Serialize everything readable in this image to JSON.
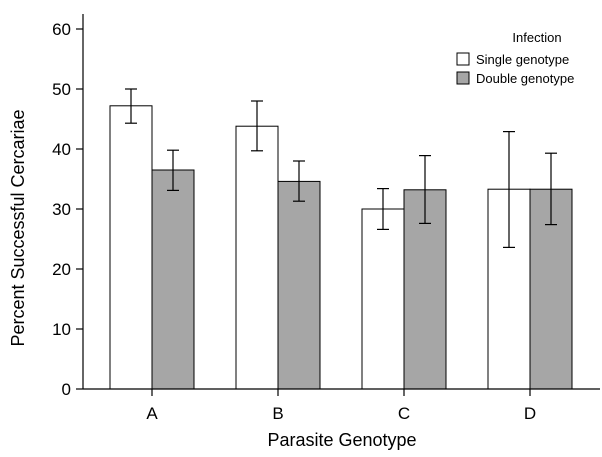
{
  "chart_data": {
    "type": "bar",
    "title": "",
    "xlabel": "Parasite Genotype",
    "ylabel": "Percent Successful Cercariae",
    "categories": [
      "A",
      "B",
      "C",
      "D"
    ],
    "ylim": [
      0,
      60
    ],
    "yticks": [
      0,
      10,
      20,
      30,
      40,
      50,
      60
    ],
    "legend": {
      "title": "Infection",
      "position": "top-right"
    },
    "series": [
      {
        "name": "Single genotype",
        "color": "#ffffff",
        "values": [
          47.2,
          43.8,
          30.0,
          33.3
        ],
        "err_low": [
          44.3,
          39.7,
          26.6,
          23.6
        ],
        "err_high": [
          50.0,
          48.0,
          33.4,
          42.9
        ]
      },
      {
        "name": "Double genotype",
        "color": "#a6a6a6",
        "values": [
          36.5,
          34.6,
          33.2,
          33.3
        ],
        "err_low": [
          33.1,
          31.3,
          27.6,
          27.4
        ],
        "err_high": [
          39.8,
          38.0,
          38.9,
          39.3
        ]
      }
    ]
  }
}
